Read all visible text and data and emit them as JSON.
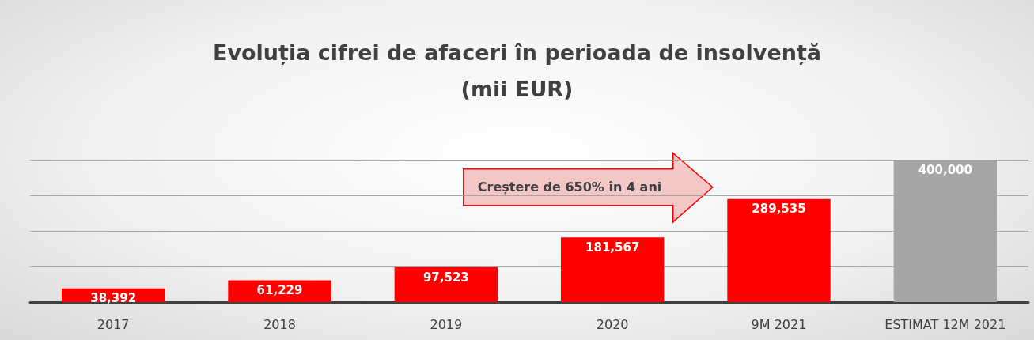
{
  "chart_data": {
    "type": "bar",
    "title": "Evoluția cifrei de afaceri în perioada de insolvență\n(mii EUR)",
    "categories": [
      "2017",
      "2018",
      "2019",
      "2020",
      "9M 2021",
      "ESTIMAT 12M 2021"
    ],
    "values": [
      38392,
      61229,
      97523,
      181567,
      289535,
      400000
    ],
    "value_labels": [
      "38,392",
      "61,229",
      "97,523",
      "181,567",
      "289,535",
      "400,000"
    ],
    "colors": [
      "#ff0000",
      "#ff0000",
      "#ff0000",
      "#ff0000",
      "#ff0000",
      "#a6a6a6"
    ],
    "ylim": [
      0,
      400000
    ],
    "yticks": [
      {
        "value": 0,
        "label": null
      },
      {
        "value": 100000,
        "label": null
      },
      {
        "value": 200000,
        "label": null
      },
      {
        "value": 300000,
        "label": null
      },
      {
        "value": 400000,
        "label": null
      }
    ],
    "tick_labels": "x",
    "grid": "y",
    "annotations": [
      "Creștere de 650% în 4 ani"
    ]
  }
}
